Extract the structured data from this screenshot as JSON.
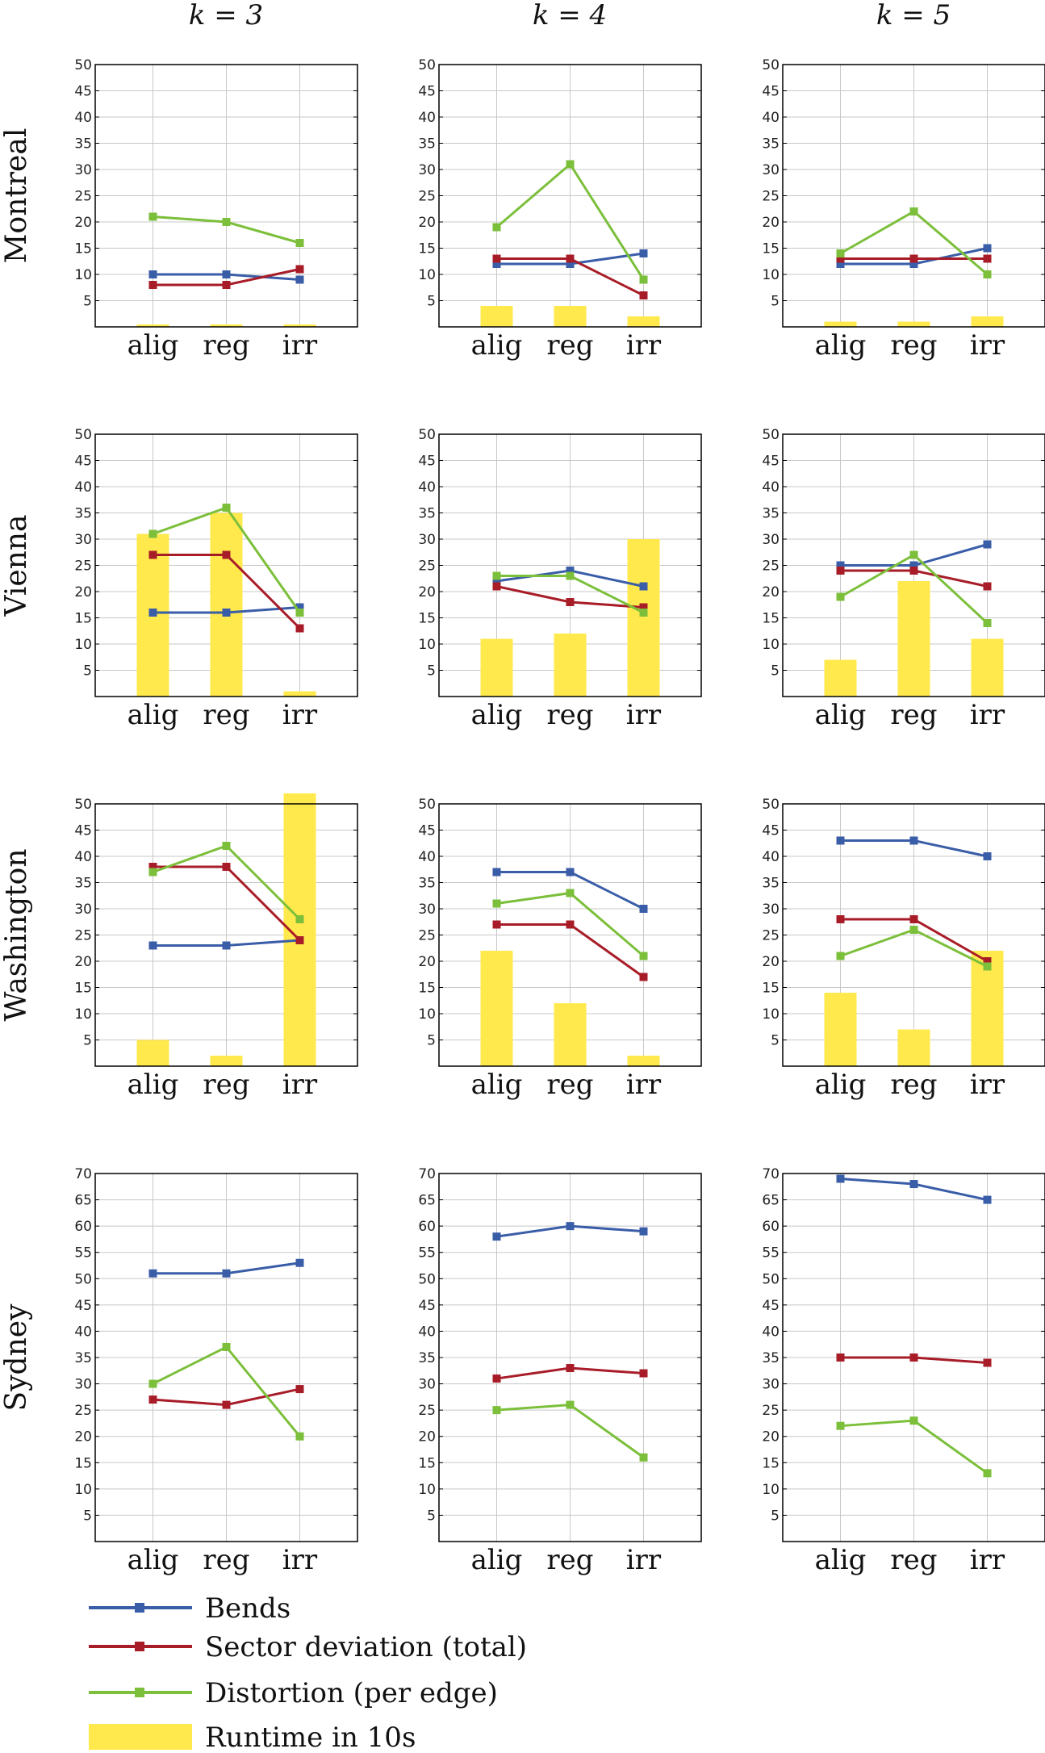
{
  "columns": [
    "k = 3",
    "k = 4",
    "k = 5"
  ],
  "rows": [
    "Montreal",
    "Vienna",
    "Washington",
    "Sydney"
  ],
  "legend": [
    {
      "key": "bends",
      "label": "Bends",
      "color": "#3a5da8",
      "kind": "line"
    },
    {
      "key": "sector",
      "label": "Sector deviation (total)",
      "color": "#a81c28",
      "kind": "line"
    },
    {
      "key": "distortion",
      "label": "Distortion (per edge)",
      "color": "#7bbf3a",
      "kind": "line"
    },
    {
      "key": "runtime",
      "label": "Runtime in 10s",
      "color": "#ffe94d",
      "kind": "bar"
    }
  ],
  "chart_data": [
    {
      "type": "line",
      "city": "Montreal",
      "k": "k = 3",
      "categories": [
        "alig",
        "reg",
        "irr"
      ],
      "ylim": [
        0,
        50
      ],
      "yticks": [
        5,
        10,
        15,
        20,
        25,
        30,
        35,
        40,
        45,
        50
      ],
      "grid": true,
      "series": [
        {
          "name": "Bends",
          "values": [
            10,
            10,
            9
          ]
        },
        {
          "name": "Sector deviation (total)",
          "values": [
            8,
            8,
            11
          ]
        },
        {
          "name": "Distortion (per edge)",
          "values": [
            21,
            20,
            16
          ]
        },
        {
          "name": "Runtime in 10s",
          "values": [
            0.4,
            0.4,
            0.4
          ]
        }
      ]
    },
    {
      "type": "line",
      "city": "Montreal",
      "k": "k = 4",
      "categories": [
        "alig",
        "reg",
        "irr"
      ],
      "ylim": [
        0,
        50
      ],
      "yticks": [
        5,
        10,
        15,
        20,
        25,
        30,
        35,
        40,
        45,
        50
      ],
      "grid": true,
      "series": [
        {
          "name": "Bends",
          "values": [
            12,
            12,
            14
          ]
        },
        {
          "name": "Sector deviation (total)",
          "values": [
            13,
            13,
            6
          ]
        },
        {
          "name": "Distortion (per edge)",
          "values": [
            19,
            31,
            9
          ]
        },
        {
          "name": "Runtime in 10s",
          "values": [
            4,
            4,
            2
          ]
        }
      ]
    },
    {
      "type": "line",
      "city": "Montreal",
      "k": "k = 5",
      "categories": [
        "alig",
        "reg",
        "irr"
      ],
      "ylim": [
        0,
        50
      ],
      "yticks": [
        5,
        10,
        15,
        20,
        25,
        30,
        35,
        40,
        45,
        50
      ],
      "grid": true,
      "series": [
        {
          "name": "Bends",
          "values": [
            12,
            12,
            15
          ]
        },
        {
          "name": "Sector deviation (total)",
          "values": [
            13,
            13,
            13
          ]
        },
        {
          "name": "Distortion (per edge)",
          "values": [
            14,
            22,
            10
          ]
        },
        {
          "name": "Runtime in 10s",
          "values": [
            1,
            1,
            2
          ]
        }
      ]
    },
    {
      "type": "line",
      "city": "Vienna",
      "k": "k = 3",
      "categories": [
        "alig",
        "reg",
        "irr"
      ],
      "ylim": [
        0,
        50
      ],
      "yticks": [
        5,
        10,
        15,
        20,
        25,
        30,
        35,
        40,
        45,
        50
      ],
      "grid": true,
      "series": [
        {
          "name": "Bends",
          "values": [
            16,
            16,
            17
          ]
        },
        {
          "name": "Sector deviation (total)",
          "values": [
            27,
            27,
            13
          ]
        },
        {
          "name": "Distortion (per edge)",
          "values": [
            31,
            36,
            16
          ]
        },
        {
          "name": "Runtime in 10s",
          "values": [
            31,
            35,
            1
          ]
        }
      ]
    },
    {
      "type": "line",
      "city": "Vienna",
      "k": "k = 4",
      "categories": [
        "alig",
        "reg",
        "irr"
      ],
      "ylim": [
        0,
        50
      ],
      "yticks": [
        5,
        10,
        15,
        20,
        25,
        30,
        35,
        40,
        45,
        50
      ],
      "grid": true,
      "series": [
        {
          "name": "Bends",
          "values": [
            22,
            24,
            21
          ]
        },
        {
          "name": "Sector deviation (total)",
          "values": [
            21,
            18,
            17
          ]
        },
        {
          "name": "Distortion (per edge)",
          "values": [
            23,
            23,
            16
          ]
        },
        {
          "name": "Runtime in 10s",
          "values": [
            11,
            12,
            30
          ]
        }
      ]
    },
    {
      "type": "line",
      "city": "Vienna",
      "k": "k = 5",
      "categories": [
        "alig",
        "reg",
        "irr"
      ],
      "ylim": [
        0,
        50
      ],
      "yticks": [
        5,
        10,
        15,
        20,
        25,
        30,
        35,
        40,
        45,
        50
      ],
      "grid": true,
      "series": [
        {
          "name": "Bends",
          "values": [
            25,
            25,
            29
          ]
        },
        {
          "name": "Sector deviation (total)",
          "values": [
            24,
            24,
            21
          ]
        },
        {
          "name": "Distortion (per edge)",
          "values": [
            19,
            27,
            14
          ]
        },
        {
          "name": "Runtime in 10s",
          "values": [
            7,
            22,
            11
          ]
        }
      ]
    },
    {
      "type": "line",
      "city": "Washington",
      "k": "k = 3",
      "categories": [
        "alig",
        "reg",
        "irr"
      ],
      "ylim": [
        0,
        50
      ],
      "yticks": [
        5,
        10,
        15,
        20,
        25,
        30,
        35,
        40,
        45,
        50
      ],
      "grid": true,
      "series": [
        {
          "name": "Bends",
          "values": [
            23,
            23,
            24
          ]
        },
        {
          "name": "Sector deviation (total)",
          "values": [
            38,
            38,
            24
          ]
        },
        {
          "name": "Distortion (per edge)",
          "values": [
            37,
            42,
            28
          ]
        },
        {
          "name": "Runtime in 10s",
          "values": [
            5,
            2,
            52
          ]
        }
      ]
    },
    {
      "type": "line",
      "city": "Washington",
      "k": "k = 4",
      "categories": [
        "alig",
        "reg",
        "irr"
      ],
      "ylim": [
        0,
        50
      ],
      "yticks": [
        5,
        10,
        15,
        20,
        25,
        30,
        35,
        40,
        45,
        50
      ],
      "grid": true,
      "series": [
        {
          "name": "Bends",
          "values": [
            37,
            37,
            30
          ]
        },
        {
          "name": "Sector deviation (total)",
          "values": [
            27,
            27,
            17
          ]
        },
        {
          "name": "Distortion (per edge)",
          "values": [
            31,
            33,
            21
          ]
        },
        {
          "name": "Runtime in 10s",
          "values": [
            22,
            12,
            2
          ]
        }
      ]
    },
    {
      "type": "line",
      "city": "Washington",
      "k": "k = 5",
      "categories": [
        "alig",
        "reg",
        "irr"
      ],
      "ylim": [
        0,
        50
      ],
      "yticks": [
        5,
        10,
        15,
        20,
        25,
        30,
        35,
        40,
        45,
        50
      ],
      "grid": true,
      "series": [
        {
          "name": "Bends",
          "values": [
            43,
            43,
            40
          ]
        },
        {
          "name": "Sector deviation (total)",
          "values": [
            28,
            28,
            20
          ]
        },
        {
          "name": "Distortion (per edge)",
          "values": [
            21,
            26,
            19
          ]
        },
        {
          "name": "Runtime in 10s",
          "values": [
            14,
            7,
            22
          ]
        }
      ]
    },
    {
      "type": "line",
      "city": "Sydney",
      "k": "k = 3",
      "categories": [
        "alig",
        "reg",
        "irr"
      ],
      "ylim": [
        0,
        70
      ],
      "yticks": [
        5,
        10,
        15,
        20,
        25,
        30,
        35,
        40,
        45,
        50,
        55,
        60,
        65,
        70
      ],
      "grid": true,
      "series": [
        {
          "name": "Bends",
          "values": [
            51,
            51,
            53
          ]
        },
        {
          "name": "Sector deviation (total)",
          "values": [
            27,
            26,
            29
          ]
        },
        {
          "name": "Distortion (per edge)",
          "values": [
            30,
            37,
            20
          ]
        }
      ]
    },
    {
      "type": "line",
      "city": "Sydney",
      "k": "k = 4",
      "categories": [
        "alig",
        "reg",
        "irr"
      ],
      "ylim": [
        0,
        70
      ],
      "yticks": [
        5,
        10,
        15,
        20,
        25,
        30,
        35,
        40,
        45,
        50,
        55,
        60,
        65,
        70
      ],
      "grid": true,
      "series": [
        {
          "name": "Bends",
          "values": [
            58,
            60,
            59
          ]
        },
        {
          "name": "Sector deviation (total)",
          "values": [
            31,
            33,
            32
          ]
        },
        {
          "name": "Distortion (per edge)",
          "values": [
            25,
            26,
            16
          ]
        }
      ]
    },
    {
      "type": "line",
      "city": "Sydney",
      "k": "k = 5",
      "categories": [
        "alig",
        "reg",
        "irr"
      ],
      "ylim": [
        0,
        70
      ],
      "yticks": [
        5,
        10,
        15,
        20,
        25,
        30,
        35,
        40,
        45,
        50,
        55,
        60,
        65,
        70
      ],
      "grid": true,
      "series": [
        {
          "name": "Bends",
          "values": [
            69,
            68,
            65
          ]
        },
        {
          "name": "Sector deviation (total)",
          "values": [
            35,
            35,
            34
          ]
        },
        {
          "name": "Distortion (per edge)",
          "values": [
            22,
            23,
            13
          ]
        }
      ]
    }
  ]
}
